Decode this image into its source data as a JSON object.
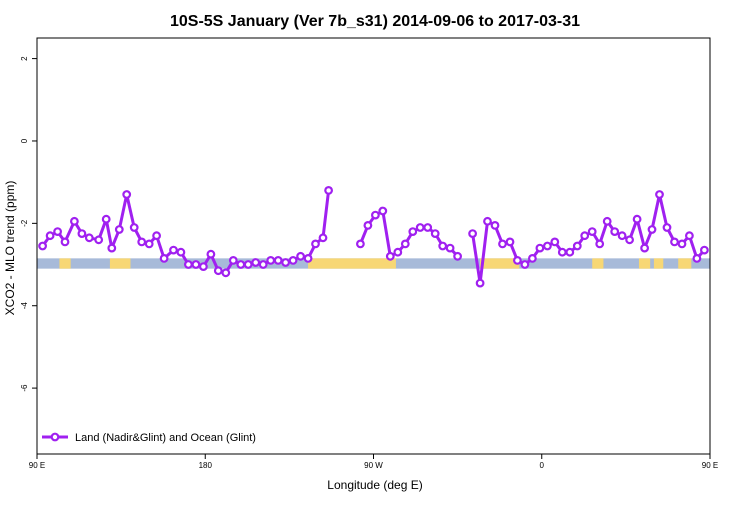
{
  "chart_data": {
    "type": "line",
    "title": "10S-5S January (Ver 7b_s31)   2014-09-06 to 2017-03-31",
    "xlabel": "Longitude (deg E)",
    "ylabel": "XCO2 - MLO trend (ppm)",
    "xlim": [
      90,
      450
    ],
    "ylim": [
      -7.6,
      2.5
    ],
    "x_ticks": [
      {
        "value": 90,
        "label": "90 E"
      },
      {
        "value": 180,
        "label": "180"
      },
      {
        "value": 270,
        "label": "90 W"
      },
      {
        "value": 360,
        "label": "0"
      },
      {
        "value": 450,
        "label": "90 E"
      },
      {
        "value": 540,
        "label": "180"
      }
    ],
    "y_ticks": [
      {
        "value": 2,
        "label": "2"
      },
      {
        "value": 0,
        "label": "0"
      },
      {
        "value": -2,
        "label": "-2"
      },
      {
        "value": -4,
        "label": "-4"
      },
      {
        "value": -6,
        "label": "-6"
      }
    ],
    "legend": {
      "label": "Land (Nadir&Glint) and Ocean (Glint)",
      "position": "bottom-left"
    },
    "series": [
      {
        "name": "Land (Nadir&Glint) and Ocean (Glint)",
        "color": "#a020f0",
        "segments": [
          [
            [
              93,
              -2.55
            ],
            [
              97,
              -2.3
            ],
            [
              101,
              -2.2
            ],
            [
              105,
              -2.45
            ],
            [
              110,
              -1.95
            ],
            [
              114,
              -2.25
            ],
            [
              118,
              -2.35
            ],
            [
              123,
              -2.4
            ],
            [
              127,
              -1.9
            ],
            [
              130,
              -2.6
            ],
            [
              134,
              -2.15
            ],
            [
              138,
              -1.3
            ],
            [
              142,
              -2.1
            ],
            [
              146,
              -2.45
            ],
            [
              150,
              -2.5
            ],
            [
              154,
              -2.3
            ],
            [
              158,
              -2.85
            ],
            [
              163,
              -2.65
            ],
            [
              167,
              -2.7
            ],
            [
              171,
              -3.0
            ],
            [
              175,
              -3.0
            ],
            [
              179,
              -3.05
            ],
            [
              183,
              -2.75
            ],
            [
              187,
              -3.15
            ],
            [
              191,
              -3.2
            ],
            [
              195,
              -2.9
            ],
            [
              199,
              -3.0
            ],
            [
              203,
              -3.0
            ],
            [
              207,
              -2.95
            ],
            [
              211,
              -3.0
            ],
            [
              215,
              -2.9
            ],
            [
              219,
              -2.9
            ],
            [
              223,
              -2.95
            ],
            [
              227,
              -2.9
            ],
            [
              231,
              -2.8
            ],
            [
              235,
              -2.85
            ],
            [
              239,
              -2.5
            ],
            [
              243,
              -2.35
            ],
            [
              246,
              -1.2
            ]
          ],
          [
            [
              263,
              -2.5
            ],
            [
              267,
              -2.05
            ],
            [
              271,
              -1.8
            ],
            [
              275,
              -1.7
            ],
            [
              279,
              -2.8
            ],
            [
              283,
              -2.7
            ],
            [
              287,
              -2.5
            ],
            [
              291,
              -2.2
            ],
            [
              295,
              -2.1
            ],
            [
              299,
              -2.1
            ],
            [
              303,
              -2.25
            ],
            [
              307,
              -2.55
            ],
            [
              311,
              -2.6
            ],
            [
              315,
              -2.8
            ]
          ],
          [
            [
              323,
              -2.25
            ],
            [
              327,
              -3.45
            ],
            [
              331,
              -1.95
            ],
            [
              335,
              -2.05
            ],
            [
              339,
              -2.5
            ],
            [
              343,
              -2.45
            ],
            [
              347,
              -2.9
            ],
            [
              351,
              -3.0
            ],
            [
              355,
              -2.85
            ],
            [
              359,
              -2.6
            ],
            [
              363,
              -2.55
            ],
            [
              367,
              -2.45
            ],
            [
              371,
              -2.7
            ],
            [
              375,
              -2.7
            ],
            [
              379,
              -2.55
            ],
            [
              383,
              -2.3
            ],
            [
              387,
              -2.2
            ],
            [
              391,
              -2.5
            ],
            [
              395,
              -1.95
            ],
            [
              399,
              -2.2
            ],
            [
              403,
              -2.3
            ],
            [
              407,
              -2.4
            ],
            [
              411,
              -1.9
            ],
            [
              415,
              -2.6
            ],
            [
              419,
              -2.15
            ],
            [
              423,
              -1.3
            ],
            [
              427,
              -2.1
            ],
            [
              431,
              -2.45
            ],
            [
              435,
              -2.5
            ],
            [
              439,
              -2.3
            ],
            [
              443,
              -2.85
            ],
            [
              447,
              -2.65
            ]
          ]
        ]
      }
    ],
    "land_ocean_strip": {
      "y_range": [
        -3.1,
        -2.85
      ],
      "ocean_color": "#a7bad9",
      "land_color": "#f7d775",
      "land_spans": [
        [
          102,
          108
        ],
        [
          129,
          140
        ],
        [
          235,
          270
        ],
        [
          270,
          282
        ],
        [
          327,
          348
        ],
        [
          387,
          393
        ],
        [
          412,
          418
        ],
        [
          420,
          425
        ],
        [
          433,
          440
        ]
      ]
    }
  }
}
